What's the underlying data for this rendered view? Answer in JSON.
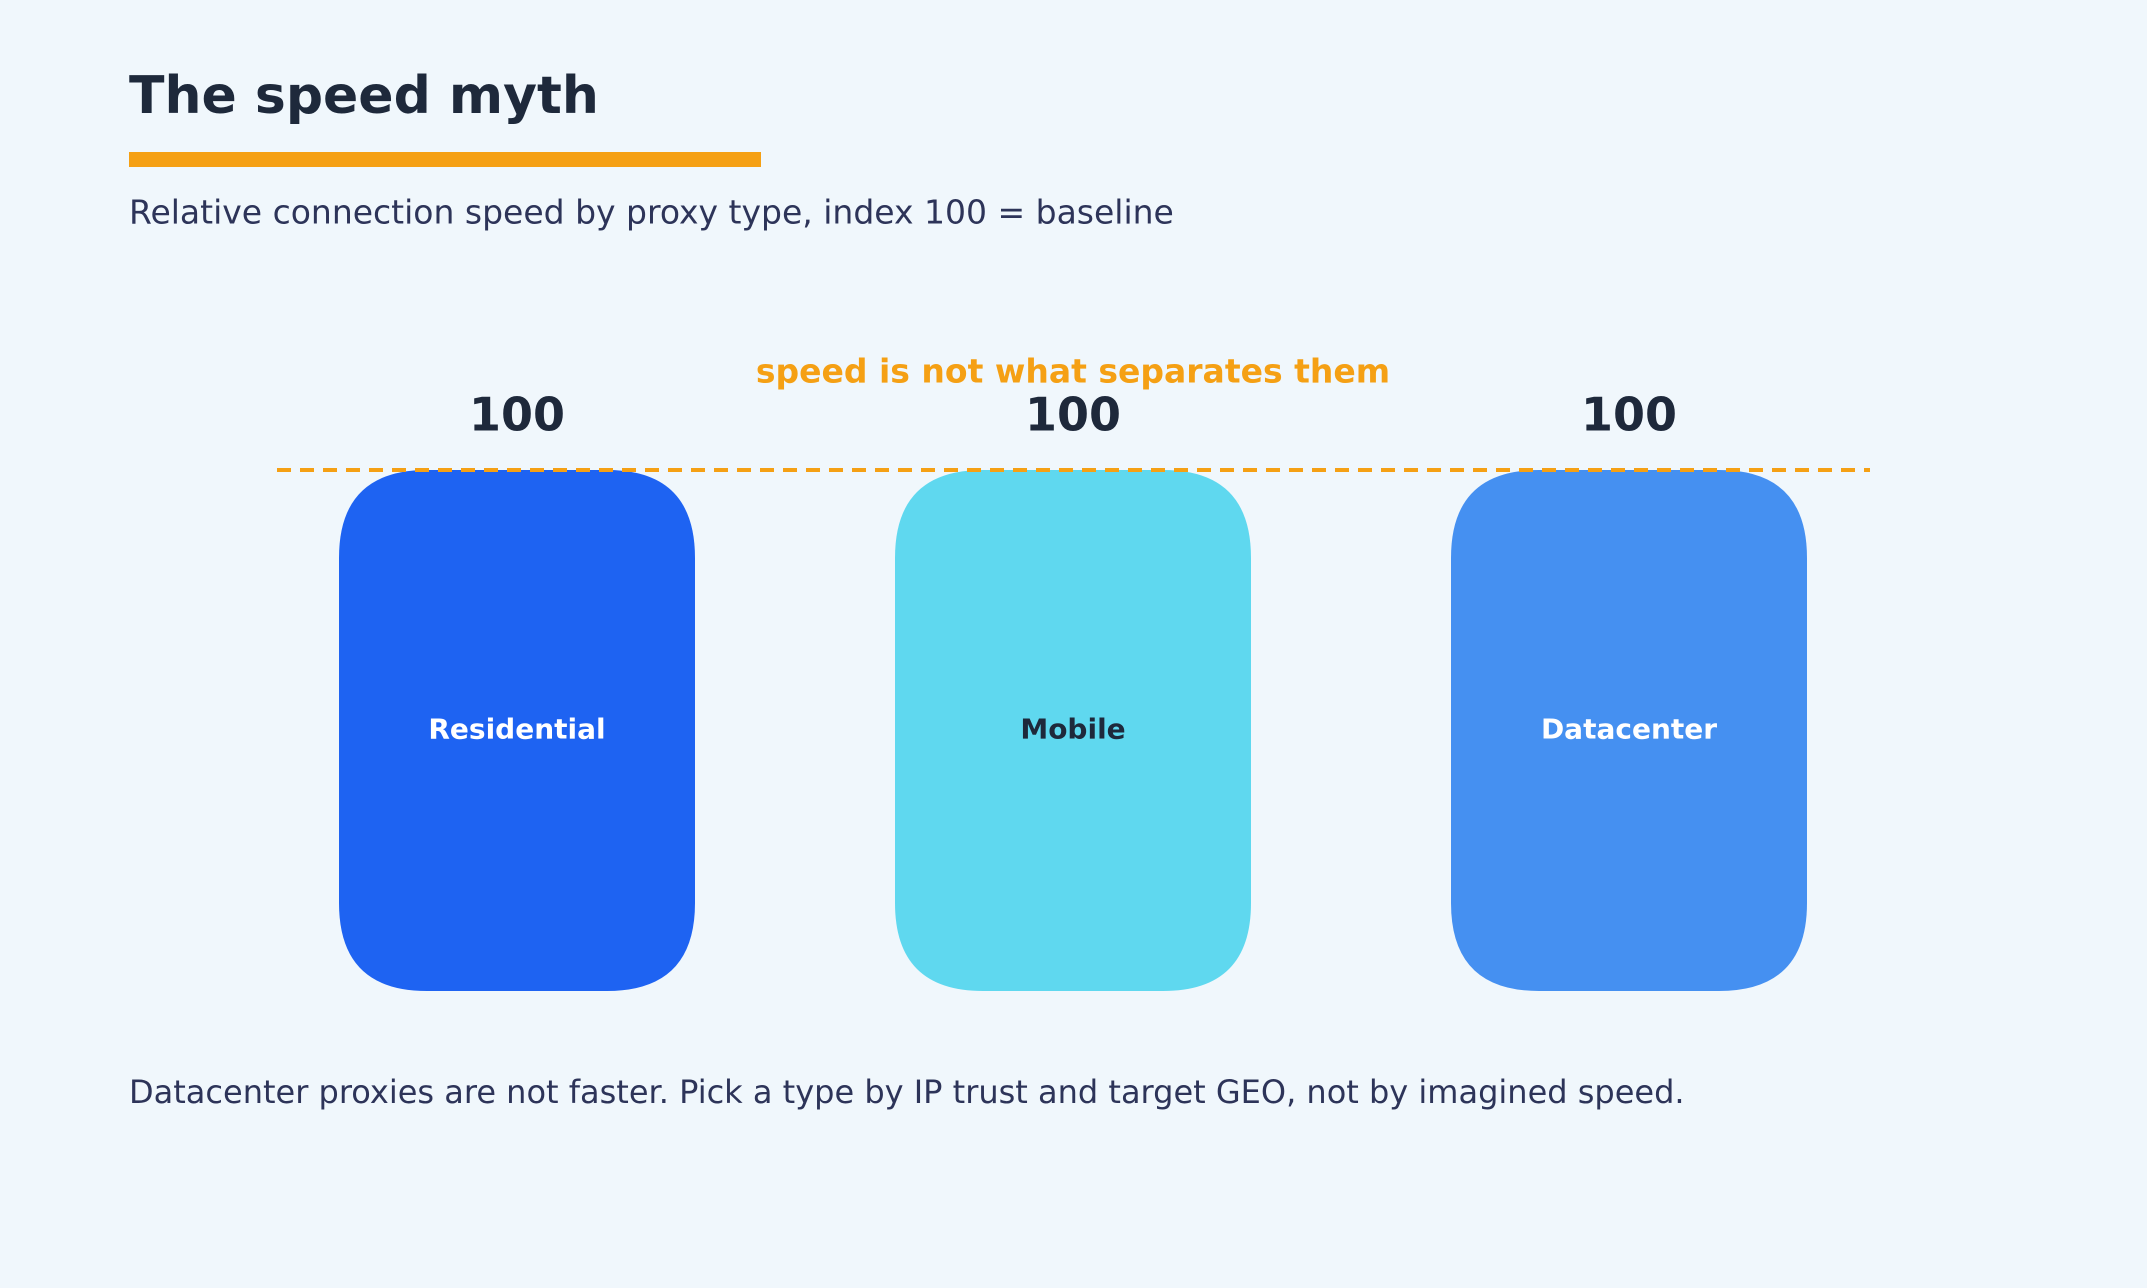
{
  "chart_data": {
    "type": "bar",
    "title": "The speed myth",
    "subtitle": "Relative connection speed by proxy type, index 100 = baseline",
    "annotation": "speed is not what separates them",
    "footer": "Datacenter proxies are not faster. Pick a type by IP trust and target GEO, not by imagined speed.",
    "categories": [
      "Residential",
      "Mobile",
      "Datacenter"
    ],
    "values": [
      100,
      100,
      100
    ],
    "colors": [
      "#1e63f2",
      "#5fd8ef",
      "#4590f1"
    ],
    "label_colors": [
      "#ffffff",
      "#1e293b",
      "#ffffff"
    ],
    "accent_color": "#f5a014"
  }
}
